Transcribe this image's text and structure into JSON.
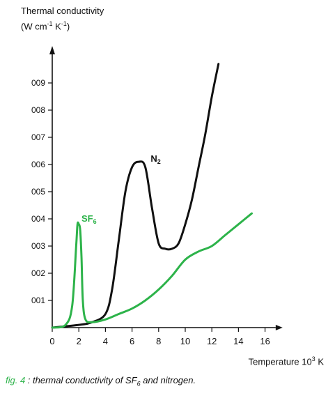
{
  "chart_data": {
    "type": "line",
    "ylabel_line1": "Thermal conductivity",
    "ylabel_line2_pre": "(W cm",
    "ylabel_line2_exp1": "-1",
    "ylabel_line2_mid": " K",
    "ylabel_line2_exp2": "-1",
    "ylabel_line2_post": ")",
    "xlabel_pre": "Temperature 10",
    "xlabel_exp": "3",
    "xlabel_post": " K",
    "xlim": [
      0,
      16
    ],
    "ylim": [
      0,
      0.01
    ],
    "x_ticks": [
      "0",
      "2",
      "4",
      "6",
      "8",
      "10",
      "12",
      "14",
      "16"
    ],
    "y_ticks": [
      "001",
      "002",
      "003",
      "004",
      "005",
      "006",
      "007",
      "008",
      "009"
    ],
    "series": [
      {
        "name": "N",
        "name_sub": "2",
        "color": "#111111",
        "x": [
          0,
          2,
          3,
          4,
          4.5,
          5,
          5.5,
          6,
          6.5,
          7,
          7.5,
          8,
          8.5,
          9,
          9.5,
          10,
          10.5,
          11,
          11.5,
          12,
          12.5
        ],
        "y": [
          0,
          0.0001,
          0.0002,
          0.0005,
          0.0014,
          0.0032,
          0.005,
          0.0059,
          0.0061,
          0.0059,
          0.0044,
          0.0031,
          0.0029,
          0.0029,
          0.0031,
          0.0038,
          0.0047,
          0.0059,
          0.0071,
          0.0085,
          0.0097
        ]
      },
      {
        "name": "SF",
        "name_sub": "6",
        "color": "#2db34a",
        "x": [
          0,
          1,
          1.5,
          1.8,
          1.9,
          2.0,
          2.1,
          2.2,
          2.3,
          2.5,
          3,
          4,
          5,
          6,
          7,
          8,
          9,
          10,
          11,
          12,
          13,
          14,
          15
        ],
        "y": [
          0,
          0.0001,
          0.0008,
          0.003,
          0.0038,
          0.0038,
          0.0036,
          0.0026,
          0.001,
          0.0003,
          0.0002,
          0.0003,
          0.0005,
          0.0007,
          0.001,
          0.0014,
          0.0019,
          0.0025,
          0.0028,
          0.003,
          0.0034,
          0.0038,
          0.0042
        ]
      }
    ]
  },
  "caption": {
    "prefix": "fig. 4",
    "text_a": " : thermal conductivity of SF",
    "text_sub": "6",
    "text_b": "  and nitrogen."
  }
}
